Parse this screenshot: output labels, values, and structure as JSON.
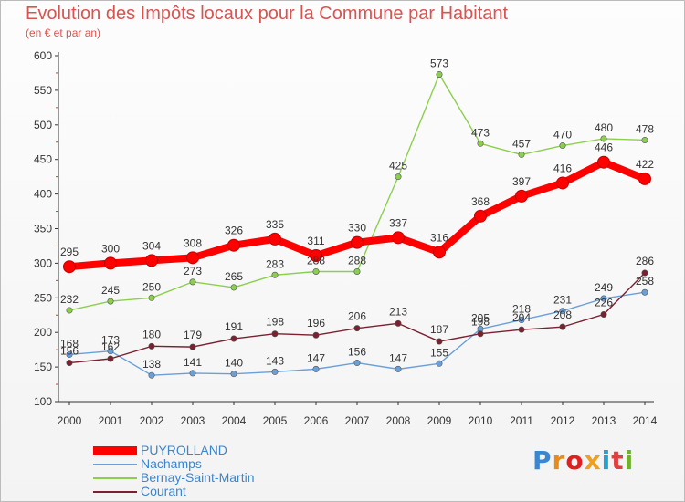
{
  "title": "Evolution des Impôts locaux pour la Commune par Habitant",
  "subtitle": "(en € et par an)",
  "logo": {
    "text": "Proxiti",
    "colors": [
      "#3a86d0",
      "#e88b1a",
      "#e02020",
      "#f0a020",
      "#2aa0d0",
      "#e04040",
      "#70b030"
    ]
  },
  "chart_data": {
    "type": "line",
    "title": "Evolution des Impôts locaux pour la Commune par Habitant",
    "subtitle": "(en € et par an)",
    "x": [
      2000,
      2001,
      2002,
      2003,
      2004,
      2005,
      2006,
      2007,
      2008,
      2009,
      2010,
      2011,
      2012,
      2013,
      2014
    ],
    "ylim": [
      100,
      600
    ],
    "yticks": [
      100,
      150,
      200,
      250,
      300,
      350,
      400,
      450,
      500,
      550,
      600
    ],
    "grid": false,
    "legend": "bottom-left",
    "series": [
      {
        "name": "PUYROLLAND",
        "color": "#ff0000",
        "values": [
          295,
          300,
          304,
          308,
          326,
          335,
          311,
          330,
          337,
          316,
          368,
          397,
          416,
          446,
          422
        ]
      },
      {
        "name": "Nachamps",
        "color": "#6aa0d8",
        "values": [
          168,
          173,
          138,
          141,
          140,
          143,
          147,
          156,
          147,
          155,
          205,
          218,
          231,
          249,
          258
        ]
      },
      {
        "name": "Bernay-Saint-Martin",
        "color": "#8ccf4d",
        "values": [
          232,
          245,
          250,
          273,
          265,
          283,
          288,
          288,
          425,
          573,
          473,
          457,
          470,
          480,
          478
        ]
      },
      {
        "name": "Courant",
        "color": "#7a2030",
        "values": [
          156,
          162,
          180,
          179,
          191,
          198,
          196,
          206,
          213,
          187,
          198,
          204,
          208,
          226,
          286
        ]
      }
    ],
    "data_labels": [
      {
        "series": 0,
        "labels": [
          "295",
          "300",
          "304",
          "308",
          "326",
          "335",
          "311",
          "330",
          "337",
          "316",
          "368",
          "397",
          "416",
          "446",
          "422"
        ]
      },
      {
        "series": 1,
        "labels": [
          "168",
          "173",
          "138",
          "141",
          "140",
          "143",
          "147",
          "156",
          "147",
          "155",
          "205",
          "218",
          "231",
          "249",
          "258"
        ]
      },
      {
        "series": 2,
        "labels": [
          "232",
          "245",
          "250",
          "273",
          "265",
          "283",
          "288",
          "288",
          "425",
          "573",
          "473",
          "457",
          "470",
          "480",
          "478"
        ]
      },
      {
        "series": 3,
        "labels": [
          "156",
          "162",
          "180",
          "179",
          "191",
          "198",
          "196",
          "206",
          "213",
          "187",
          "198",
          "204",
          "208",
          "226",
          "286"
        ]
      }
    ]
  }
}
